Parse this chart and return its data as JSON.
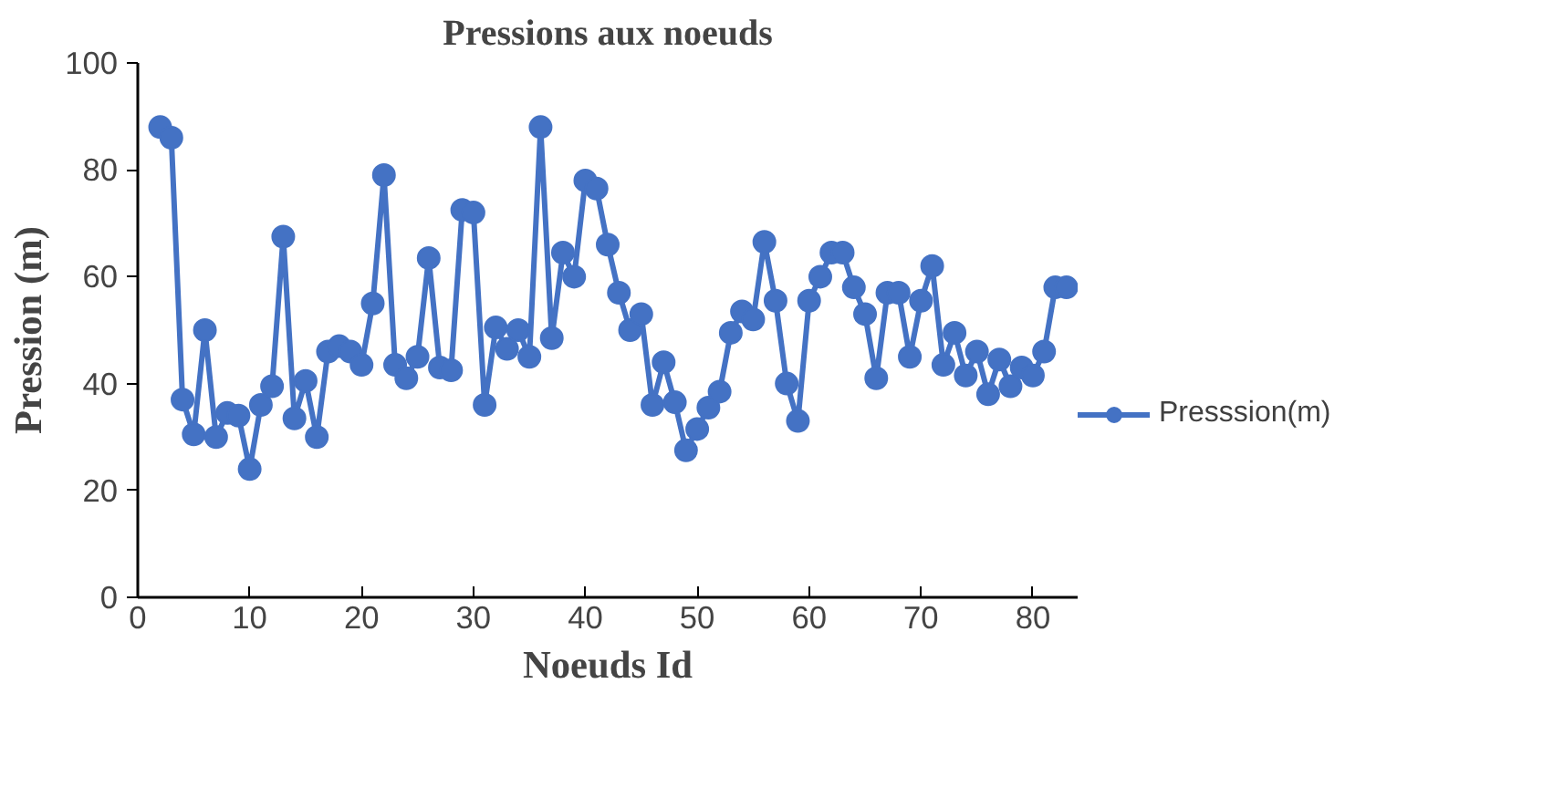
{
  "chart_data": {
    "type": "line",
    "title": "Pressions aux noeuds",
    "xlabel": "Noeuds Id",
    "ylabel": "Pression (m)",
    "x": [
      2,
      3,
      4,
      5,
      6,
      7,
      8,
      9,
      10,
      11,
      12,
      13,
      14,
      15,
      16,
      17,
      18,
      19,
      20,
      21,
      22,
      23,
      24,
      25,
      26,
      27,
      28,
      29,
      30,
      31,
      32,
      33,
      34,
      35,
      36,
      37,
      38,
      39,
      40,
      41,
      42,
      43,
      44,
      45,
      46,
      47,
      48,
      49,
      50,
      51,
      52,
      53,
      54,
      55,
      56,
      57,
      58,
      59,
      60,
      61,
      62,
      63,
      64,
      65,
      66,
      67,
      68,
      69,
      70,
      71,
      72,
      73,
      74,
      75,
      76,
      77,
      78,
      79,
      80,
      81,
      82,
      83
    ],
    "series": [
      {
        "name": "Presssion(m)",
        "color": "#4472c4",
        "values": [
          88,
          86,
          37,
          30.5,
          50,
          30,
          34.5,
          34,
          24,
          36,
          39.5,
          67.5,
          33.5,
          40.5,
          30,
          46,
          47,
          46,
          43.5,
          55,
          79,
          43.5,
          41,
          45,
          63.5,
          43,
          42.5,
          72.5,
          72,
          36,
          50.5,
          46.5,
          50,
          45,
          88,
          48.5,
          64.5,
          60,
          78,
          76.5,
          66,
          57,
          50,
          53,
          36,
          44,
          36.5,
          27.5,
          31.5,
          35.5,
          38.5,
          49.5,
          53.5,
          52,
          66.5,
          55.5,
          40,
          33,
          55.5,
          60,
          64.5,
          64.5,
          58,
          53,
          41,
          57,
          57,
          45,
          55.5,
          62,
          43.5,
          49.5,
          41.5,
          46,
          38,
          44.5,
          39.5,
          43,
          41.5,
          46,
          58,
          58
        ]
      }
    ],
    "xlim": [
      0,
      84
    ],
    "ylim": [
      0,
      100
    ],
    "xticks": [
      0,
      10,
      20,
      30,
      40,
      50,
      60,
      70,
      80
    ],
    "yticks": [
      0,
      20,
      40,
      60,
      80,
      100
    ],
    "grid": false,
    "legend": "right",
    "marker": "circle",
    "line_style": "solid"
  }
}
